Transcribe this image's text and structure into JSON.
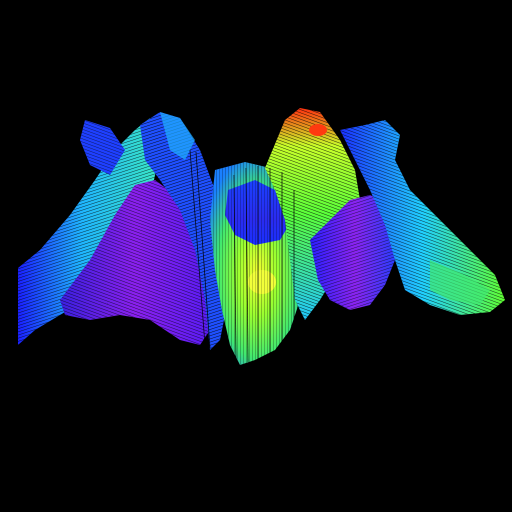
{
  "scene": {
    "background": "#000000",
    "wireframe_color": "#000000",
    "colormap": [
      "#8a1cf0",
      "#3a1bf5",
      "#1f3cff",
      "#1fb0ff",
      "#37ffd2",
      "#7dff3a",
      "#f5ff2a",
      "#ff7a10",
      "#ff2a10"
    ],
    "render_style": "wireframe-on-colored-surface"
  }
}
